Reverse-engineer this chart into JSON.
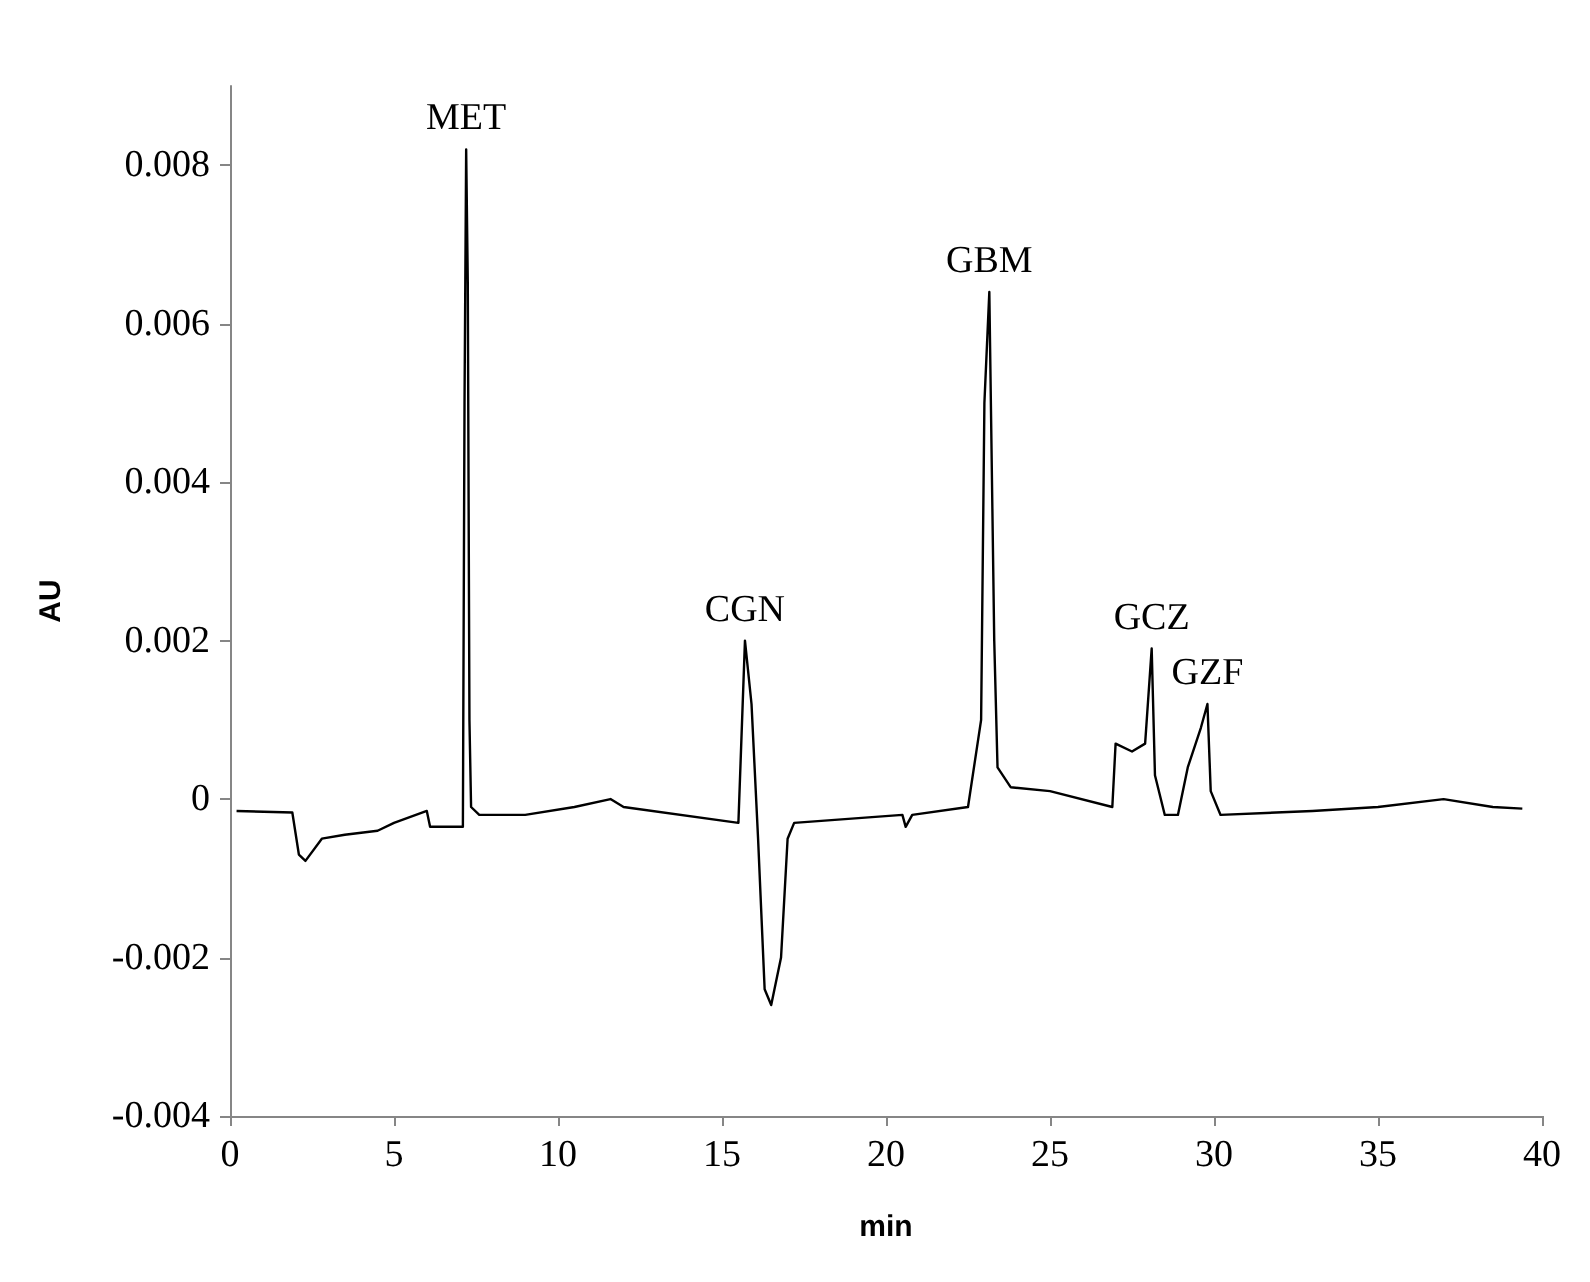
{
  "chart_data": {
    "type": "line",
    "xlabel": "min",
    "ylabel": "AU",
    "x": [
      0.2,
      1.9,
      2.1,
      2.3,
      2.8,
      3.5,
      4.5,
      5,
      6,
      6.1,
      7.1,
      7.15,
      7.2,
      7.25,
      7.3,
      7.35,
      7.6,
      9,
      10.5,
      11.6,
      12,
      15.5,
      15.7,
      15.9,
      16.1,
      16.3,
      16.5,
      16.8,
      17,
      17.2,
      20.5,
      20.6,
      20.8,
      22.5,
      22.9,
      23,
      23.15,
      23.3,
      23.4,
      23.8,
      25,
      26.9,
      27,
      27.5,
      27.9,
      28.1,
      28.2,
      28.5,
      28.9,
      29.2,
      29.6,
      29.8,
      29.9,
      30.2,
      33,
      35,
      37,
      38.5,
      39.4
    ],
    "series": [
      {
        "color": "#000000",
        "values": [
          -0.00015,
          -0.00017,
          -0.0007,
          -0.00078,
          -0.0005,
          -0.00045,
          -0.0004,
          -0.0003,
          -0.00015,
          -0.00035,
          -0.00035,
          0.005,
          0.0082,
          0.0065,
          0.001,
          -0.0001,
          -0.0002,
          -0.0002,
          -0.0001,
          0.0,
          -0.0001,
          -0.0003,
          0.002,
          0.0012,
          -0.0005,
          -0.0024,
          -0.0026,
          -0.002,
          -0.0005,
          -0.0003,
          -0.0002,
          -0.00035,
          -0.0002,
          -0.0001,
          0.001,
          0.005,
          0.0064,
          0.002,
          0.0004,
          0.00015,
          0.0001,
          -0.0001,
          0.0007,
          0.0006,
          0.0007,
          0.0019,
          0.0003,
          -0.0002,
          -0.0002,
          0.0004,
          0.0009,
          0.0012,
          0.0001,
          -0.0002,
          -0.00015,
          -0.0001,
          0.0,
          -0.0001,
          -0.00012
        ]
      }
    ],
    "xlim": [
      0,
      40
    ],
    "xticks": [
      0,
      5,
      10,
      15,
      20,
      25,
      30,
      35,
      40
    ],
    "ylim": [
      -0.004,
      0.009
    ],
    "yticks": [
      -0.004,
      -0.002,
      0,
      0.002,
      0.004,
      0.006,
      0.008
    ],
    "grid": false,
    "marker": "none",
    "line_style": "solid",
    "annotations": [
      {
        "text": "MET",
        "x": 7.2,
        "y": 0.0082
      },
      {
        "text": "CGN",
        "x": 15.7,
        "y": 0.002
      },
      {
        "text": "GBM",
        "x": 23.15,
        "y": 0.0064
      },
      {
        "text": "GCZ",
        "x": 28.1,
        "y": 0.0019
      },
      {
        "text": "GZF",
        "x": 29.8,
        "y": 0.0012
      }
    ]
  }
}
